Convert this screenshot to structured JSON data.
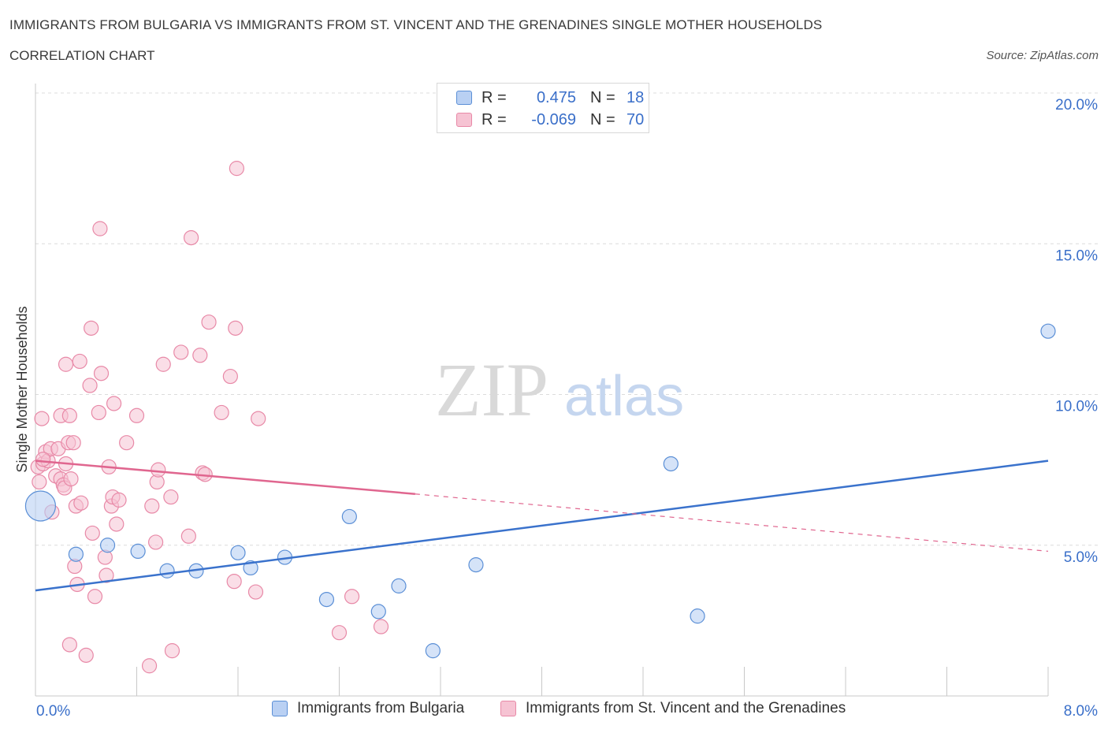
{
  "header": {
    "title": "IMMIGRANTS FROM BULGARIA VS IMMIGRANTS FROM ST. VINCENT AND THE GRENADINES SINGLE MOTHER HOUSEHOLDS",
    "subtitle": "CORRELATION CHART",
    "source": "Source: ZipAtlas.com"
  },
  "watermark": {
    "part1": "ZIP",
    "part2": "atlas"
  },
  "legend": {
    "rows": [
      {
        "r_label": "R =",
        "r_value": "0.475",
        "n_label": "N =",
        "n_value": "18"
      },
      {
        "r_label": "R =",
        "r_value": "-0.069",
        "n_label": "N =",
        "n_value": "70"
      }
    ]
  },
  "chart_data": {
    "type": "scatter",
    "title": "IMMIGRANTS FROM BULGARIA VS IMMIGRANTS FROM ST. VINCENT AND THE GRENADINES SINGLE MOTHER HOUSEHOLDS",
    "ylabel": "Single Mother Households",
    "xlim": [
      0,
      8
    ],
    "ylim": [
      0,
      20
    ],
    "x_tick_labels": [
      "0.0%",
      "8.0%"
    ],
    "y_ticks": [
      5,
      10,
      15,
      20
    ],
    "y_tick_labels": [
      "5.0%",
      "10.0%",
      "15.0%",
      "20.0%"
    ],
    "grid": true,
    "legend_position": "top-center",
    "series": [
      {
        "name": "Immigrants from Bulgaria",
        "color": "#5b8fd6",
        "fill": "#b9d0f3",
        "trend": {
          "x": [
            0,
            8
          ],
          "y": [
            3.5,
            7.8
          ],
          "color": "#3a72cc"
        },
        "points": [
          {
            "x": 0.04,
            "y": 6.3,
            "big": true
          },
          {
            "x": 0.32,
            "y": 4.7
          },
          {
            "x": 0.57,
            "y": 5.0
          },
          {
            "x": 0.81,
            "y": 4.8
          },
          {
            "x": 1.04,
            "y": 4.15
          },
          {
            "x": 1.27,
            "y": 4.15
          },
          {
            "x": 1.6,
            "y": 4.75
          },
          {
            "x": 1.7,
            "y": 4.25
          },
          {
            "x": 1.97,
            "y": 4.6
          },
          {
            "x": 2.3,
            "y": 3.2
          },
          {
            "x": 2.48,
            "y": 5.95
          },
          {
            "x": 2.71,
            "y": 2.8
          },
          {
            "x": 2.87,
            "y": 3.65
          },
          {
            "x": 3.14,
            "y": 1.5
          },
          {
            "x": 3.48,
            "y": 4.35
          },
          {
            "x": 5.02,
            "y": 7.7
          },
          {
            "x": 5.23,
            "y": 2.65
          },
          {
            "x": 8.0,
            "y": 12.1
          }
        ]
      },
      {
        "name": "Immigrants from St. Vincent and the Grenadines",
        "color": "#e889a7",
        "fill": "#f6c3d3",
        "trend": {
          "x": [
            0,
            3.0
          ],
          "y": [
            7.8,
            6.7
          ],
          "dash_x": [
            3.0,
            8.0
          ],
          "dash_y": [
            6.7,
            4.8
          ],
          "color": "#e0668f"
        },
        "points": [
          {
            "x": 0.02,
            "y": 7.6
          },
          {
            "x": 0.03,
            "y": 7.1
          },
          {
            "x": 0.05,
            "y": 9.2
          },
          {
            "x": 0.06,
            "y": 7.7
          },
          {
            "x": 0.08,
            "y": 8.1
          },
          {
            "x": 0.1,
            "y": 7.8
          },
          {
            "x": 0.12,
            "y": 8.2
          },
          {
            "x": 0.13,
            "y": 6.1
          },
          {
            "x": 0.16,
            "y": 7.3
          },
          {
            "x": 0.18,
            "y": 8.2
          },
          {
            "x": 0.2,
            "y": 9.3
          },
          {
            "x": 0.2,
            "y": 7.2
          },
          {
            "x": 0.22,
            "y": 7.0
          },
          {
            "x": 0.23,
            "y": 6.9
          },
          {
            "x": 0.24,
            "y": 7.7
          },
          {
            "x": 0.24,
            "y": 11.0
          },
          {
            "x": 0.26,
            "y": 8.4
          },
          {
            "x": 0.27,
            "y": 9.3
          },
          {
            "x": 0.27,
            "y": 1.7
          },
          {
            "x": 0.28,
            "y": 7.2
          },
          {
            "x": 0.3,
            "y": 8.4
          },
          {
            "x": 0.31,
            "y": 4.3
          },
          {
            "x": 0.32,
            "y": 6.3
          },
          {
            "x": 0.33,
            "y": 3.7
          },
          {
            "x": 0.35,
            "y": 11.1
          },
          {
            "x": 0.36,
            "y": 6.4
          },
          {
            "x": 0.4,
            "y": 1.35
          },
          {
            "x": 0.43,
            "y": 10.3
          },
          {
            "x": 0.44,
            "y": 12.2
          },
          {
            "x": 0.45,
            "y": 5.4
          },
          {
            "x": 0.47,
            "y": 3.3
          },
          {
            "x": 0.5,
            "y": 9.4
          },
          {
            "x": 0.51,
            "y": 15.5
          },
          {
            "x": 0.52,
            "y": 10.7
          },
          {
            "x": 0.55,
            "y": 4.6
          },
          {
            "x": 0.56,
            "y": 4.0
          },
          {
            "x": 0.58,
            "y": 7.6
          },
          {
            "x": 0.6,
            "y": 6.3
          },
          {
            "x": 0.61,
            "y": 6.6
          },
          {
            "x": 0.62,
            "y": 9.7
          },
          {
            "x": 0.64,
            "y": 5.7
          },
          {
            "x": 0.66,
            "y": 6.5
          },
          {
            "x": 0.72,
            "y": 8.4
          },
          {
            "x": 0.8,
            "y": 9.3
          },
          {
            "x": 0.9,
            "y": 1.0
          },
          {
            "x": 0.92,
            "y": 6.3
          },
          {
            "x": 0.95,
            "y": 5.1
          },
          {
            "x": 0.96,
            "y": 7.1
          },
          {
            "x": 0.97,
            "y": 7.5
          },
          {
            "x": 1.01,
            "y": 11.0
          },
          {
            "x": 1.07,
            "y": 6.6
          },
          {
            "x": 1.08,
            "y": 1.5
          },
          {
            "x": 1.15,
            "y": 11.4
          },
          {
            "x": 1.21,
            "y": 5.3
          },
          {
            "x": 1.23,
            "y": 15.2
          },
          {
            "x": 1.3,
            "y": 11.3
          },
          {
            "x": 1.32,
            "y": 7.4
          },
          {
            "x": 1.34,
            "y": 7.35
          },
          {
            "x": 1.37,
            "y": 12.4
          },
          {
            "x": 1.47,
            "y": 9.4
          },
          {
            "x": 1.54,
            "y": 10.6
          },
          {
            "x": 1.57,
            "y": 3.8
          },
          {
            "x": 1.58,
            "y": 12.2
          },
          {
            "x": 1.59,
            "y": 17.5
          },
          {
            "x": 1.74,
            "y": 3.45
          },
          {
            "x": 1.76,
            "y": 9.2
          },
          {
            "x": 2.4,
            "y": 2.1
          },
          {
            "x": 2.5,
            "y": 3.3
          },
          {
            "x": 2.73,
            "y": 2.3
          },
          {
            "x": 0.06,
            "y": 7.85
          }
        ]
      }
    ]
  },
  "bottom_legend": {
    "items": [
      {
        "label": "Immigrants from Bulgaria"
      },
      {
        "label": "Immigrants from St. Vincent and the Grenadines"
      }
    ]
  }
}
